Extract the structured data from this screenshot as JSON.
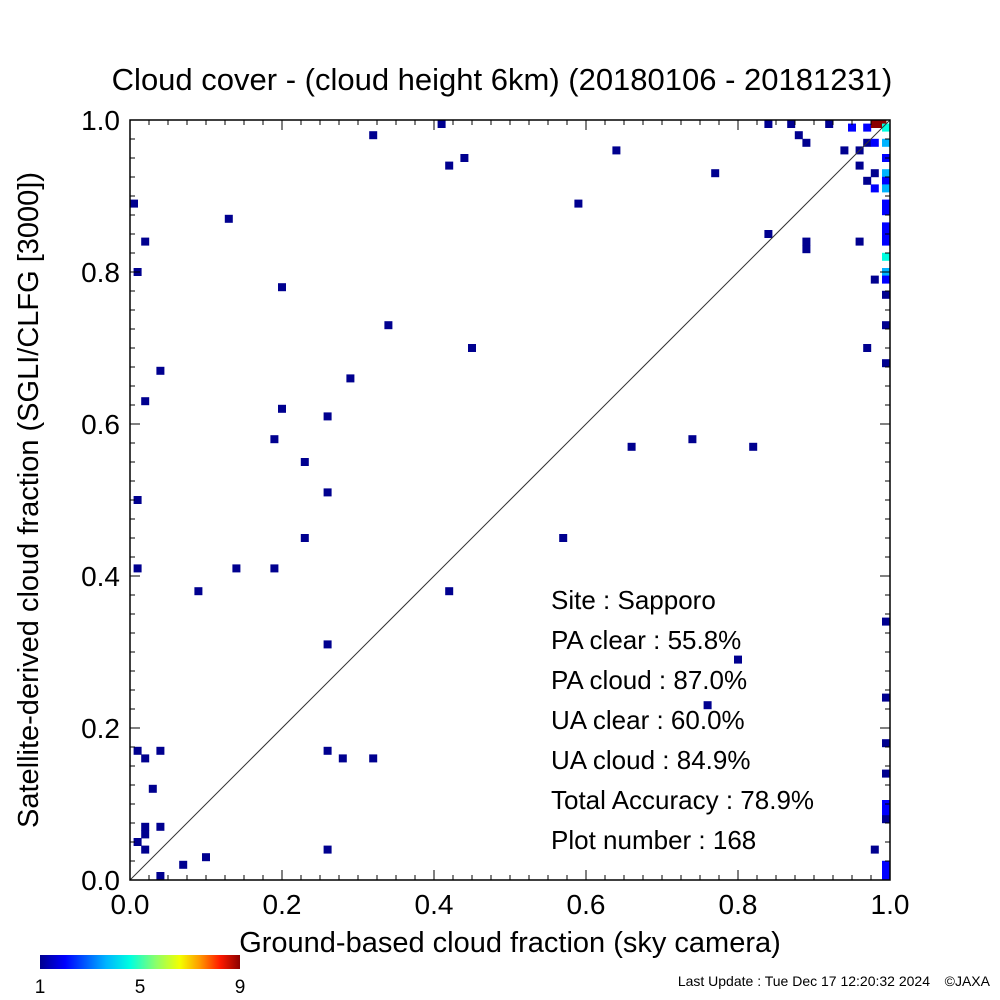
{
  "chart_data": {
    "type": "heatmap",
    "title": "Cloud cover - (cloud height 6km)  (20180106 - 20181231)",
    "xlabel": "Ground-based cloud fraction (sky camera)",
    "ylabel": "Satellite-derived cloud fraction (SGLI/CLFG [3000])",
    "xlim": [
      0.0,
      1.0
    ],
    "ylim": [
      0.0,
      1.0
    ],
    "x_ticks": [
      "0.0",
      "0.2",
      "0.4",
      "0.6",
      "0.8",
      "1.0"
    ],
    "y_ticks": [
      "0.0",
      "0.2",
      "0.4",
      "0.6",
      "0.8",
      "1.0"
    ],
    "grid": false,
    "reference_line": "y = x",
    "colorbar": {
      "min": 1,
      "max": 9,
      "ticks": [
        "1",
        "5",
        "9"
      ],
      "colors": [
        "#00008f",
        "#0000ff",
        "#00b4ff",
        "#00ffe0",
        "#8cff6a",
        "#f4ff00",
        "#ff9800",
        "#ff1a00",
        "#8b0000"
      ]
    },
    "stats": [
      {
        "label": "Site : Sapporo"
      },
      {
        "label": "PA clear :  55.8%"
      },
      {
        "label": "PA cloud :  87.0%"
      },
      {
        "label": "UA clear :  60.0%"
      },
      {
        "label": "UA cloud :  84.9%"
      },
      {
        "label": "Total Accuracy :  78.9%"
      },
      {
        "label": "Plot number :       168"
      }
    ],
    "points": [
      {
        "x": 0.0,
        "y": 0.89,
        "c": 1
      },
      {
        "x": 0.01,
        "y": 0.8,
        "c": 1
      },
      {
        "x": 0.02,
        "y": 0.84,
        "c": 1
      },
      {
        "x": 0.04,
        "y": 0.67,
        "c": 1
      },
      {
        "x": 0.02,
        "y": 0.63,
        "c": 1
      },
      {
        "x": 0.01,
        "y": 0.5,
        "c": 1
      },
      {
        "x": 0.01,
        "y": 0.41,
        "c": 1
      },
      {
        "x": 0.09,
        "y": 0.38,
        "c": 1
      },
      {
        "x": 0.14,
        "y": 0.41,
        "c": 1
      },
      {
        "x": 0.13,
        "y": 0.87,
        "c": 1
      },
      {
        "x": 0.19,
        "y": 0.58,
        "c": 1
      },
      {
        "x": 0.19,
        "y": 0.41,
        "c": 1
      },
      {
        "x": 0.2,
        "y": 0.78,
        "c": 1
      },
      {
        "x": 0.2,
        "y": 0.62,
        "c": 1
      },
      {
        "x": 0.23,
        "y": 0.55,
        "c": 1
      },
      {
        "x": 0.23,
        "y": 0.45,
        "c": 1
      },
      {
        "x": 0.26,
        "y": 0.61,
        "c": 1
      },
      {
        "x": 0.26,
        "y": 0.51,
        "c": 1
      },
      {
        "x": 0.26,
        "y": 0.31,
        "c": 1
      },
      {
        "x": 0.29,
        "y": 0.66,
        "c": 1
      },
      {
        "x": 0.32,
        "y": 0.98,
        "c": 1
      },
      {
        "x": 0.34,
        "y": 0.73,
        "c": 1
      },
      {
        "x": 0.41,
        "y": 1.0,
        "c": 1
      },
      {
        "x": 0.42,
        "y": 0.94,
        "c": 1
      },
      {
        "x": 0.44,
        "y": 0.95,
        "c": 1
      },
      {
        "x": 0.45,
        "y": 0.7,
        "c": 1
      },
      {
        "x": 0.42,
        "y": 0.38,
        "c": 1
      },
      {
        "x": 0.57,
        "y": 0.45,
        "c": 1
      },
      {
        "x": 0.59,
        "y": 0.89,
        "c": 1
      },
      {
        "x": 0.64,
        "y": 0.96,
        "c": 1
      },
      {
        "x": 0.66,
        "y": 0.57,
        "c": 1
      },
      {
        "x": 0.74,
        "y": 0.58,
        "c": 1
      },
      {
        "x": 0.77,
        "y": 0.93,
        "c": 1
      },
      {
        "x": 0.82,
        "y": 0.57,
        "c": 1
      },
      {
        "x": 0.8,
        "y": 0.29,
        "c": 1
      },
      {
        "x": 0.76,
        "y": 0.23,
        "c": 1
      },
      {
        "x": 0.84,
        "y": 1.0,
        "c": 1
      },
      {
        "x": 0.87,
        "y": 1.0,
        "c": 1
      },
      {
        "x": 0.84,
        "y": 0.85,
        "c": 1
      },
      {
        "x": 0.88,
        "y": 0.98,
        "c": 1
      },
      {
        "x": 0.89,
        "y": 0.97,
        "c": 1
      },
      {
        "x": 0.89,
        "y": 0.84,
        "c": 1
      },
      {
        "x": 0.89,
        "y": 0.83,
        "c": 1
      },
      {
        "x": 0.92,
        "y": 1.0,
        "c": 1
      },
      {
        "x": 0.94,
        "y": 0.96,
        "c": 1
      },
      {
        "x": 0.95,
        "y": 0.99,
        "c": 2
      },
      {
        "x": 0.96,
        "y": 0.96,
        "c": 1
      },
      {
        "x": 0.96,
        "y": 0.94,
        "c": 1
      },
      {
        "x": 0.96,
        "y": 0.84,
        "c": 1
      },
      {
        "x": 0.97,
        "y": 0.99,
        "c": 2
      },
      {
        "x": 0.97,
        "y": 0.97,
        "c": 1
      },
      {
        "x": 0.97,
        "y": 0.92,
        "c": 1
      },
      {
        "x": 0.97,
        "y": 0.7,
        "c": 1
      },
      {
        "x": 0.98,
        "y": 1.0,
        "c": 9
      },
      {
        "x": 0.99,
        "y": 1.0,
        "c": 9
      },
      {
        "x": 0.98,
        "y": 0.97,
        "c": 2
      },
      {
        "x": 0.98,
        "y": 0.93,
        "c": 1
      },
      {
        "x": 0.98,
        "y": 0.91,
        "c": 2
      },
      {
        "x": 0.98,
        "y": 0.79,
        "c": 1
      },
      {
        "x": 0.98,
        "y": 0.04,
        "c": 1
      },
      {
        "x": 1.0,
        "y": 0.99,
        "c": 4
      },
      {
        "x": 1.0,
        "y": 0.97,
        "c": 3
      },
      {
        "x": 1.0,
        "y": 0.95,
        "c": 2
      },
      {
        "x": 1.0,
        "y": 0.93,
        "c": 3
      },
      {
        "x": 1.0,
        "y": 0.92,
        "c": 2
      },
      {
        "x": 1.0,
        "y": 0.91,
        "c": 3
      },
      {
        "x": 1.0,
        "y": 0.89,
        "c": 2
      },
      {
        "x": 1.0,
        "y": 0.88,
        "c": 2
      },
      {
        "x": 1.0,
        "y": 0.86,
        "c": 2
      },
      {
        "x": 1.0,
        "y": 0.85,
        "c": 2
      },
      {
        "x": 1.0,
        "y": 0.84,
        "c": 2
      },
      {
        "x": 1.0,
        "y": 0.82,
        "c": 4
      },
      {
        "x": 1.0,
        "y": 0.8,
        "c": 3
      },
      {
        "x": 1.0,
        "y": 0.79,
        "c": 2
      },
      {
        "x": 1.0,
        "y": 0.77,
        "c": 1
      },
      {
        "x": 1.0,
        "y": 0.73,
        "c": 1
      },
      {
        "x": 1.0,
        "y": 0.68,
        "c": 1
      },
      {
        "x": 1.0,
        "y": 0.34,
        "c": 1
      },
      {
        "x": 1.0,
        "y": 0.24,
        "c": 1
      },
      {
        "x": 1.0,
        "y": 0.18,
        "c": 1
      },
      {
        "x": 1.0,
        "y": 0.14,
        "c": 1
      },
      {
        "x": 1.0,
        "y": 0.1,
        "c": 2
      },
      {
        "x": 1.0,
        "y": 0.09,
        "c": 2
      },
      {
        "x": 1.0,
        "y": 0.08,
        "c": 1
      },
      {
        "x": 1.0,
        "y": 0.02,
        "c": 2
      },
      {
        "x": 1.0,
        "y": 0.01,
        "c": 2
      },
      {
        "x": 1.0,
        "y": 0.0,
        "c": 2
      },
      {
        "x": 0.01,
        "y": 0.17,
        "c": 1
      },
      {
        "x": 0.02,
        "y": 0.16,
        "c": 1
      },
      {
        "x": 0.04,
        "y": 0.17,
        "c": 1
      },
      {
        "x": 0.03,
        "y": 0.12,
        "c": 1
      },
      {
        "x": 0.02,
        "y": 0.07,
        "c": 1
      },
      {
        "x": 0.02,
        "y": 0.06,
        "c": 1
      },
      {
        "x": 0.04,
        "y": 0.07,
        "c": 1
      },
      {
        "x": 0.01,
        "y": 0.05,
        "c": 1
      },
      {
        "x": 0.02,
        "y": 0.04,
        "c": 1
      },
      {
        "x": 0.04,
        "y": 0.0,
        "c": 1
      },
      {
        "x": 0.07,
        "y": 0.02,
        "c": 1
      },
      {
        "x": 0.1,
        "y": 0.03,
        "c": 1
      },
      {
        "x": 0.26,
        "y": 0.17,
        "c": 1
      },
      {
        "x": 0.28,
        "y": 0.16,
        "c": 1
      },
      {
        "x": 0.32,
        "y": 0.16,
        "c": 1
      },
      {
        "x": 0.26,
        "y": 0.04,
        "c": 1
      }
    ]
  },
  "footer": {
    "last_update": "Last Update : Tue Dec 17 12:20:32 2024",
    "credit": "©JAXA"
  }
}
